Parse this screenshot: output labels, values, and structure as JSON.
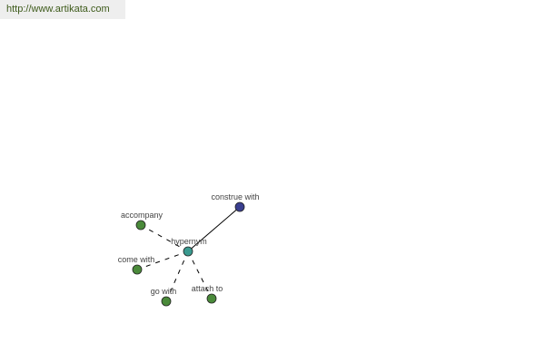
{
  "header": {
    "site_link": "http://www.artikata.com"
  },
  "graph": {
    "center": {
      "id": "center",
      "label": "hypernym",
      "color": "#3a9a8f"
    },
    "nodes": [
      {
        "id": "construe",
        "label": "construe with",
        "color": "#3a3f8f",
        "edge": "solid"
      },
      {
        "id": "accompany",
        "label": "accompany",
        "color": "#4a8a3a",
        "edge": "dashed"
      },
      {
        "id": "come",
        "label": "come with",
        "color": "#4a8a3a",
        "edge": "dashed"
      },
      {
        "id": "go",
        "label": "go with",
        "color": "#4a8a3a",
        "edge": "dashed"
      },
      {
        "id": "attach",
        "label": "attach to",
        "color": "#4a8a3a",
        "edge": "dashed"
      }
    ]
  }
}
